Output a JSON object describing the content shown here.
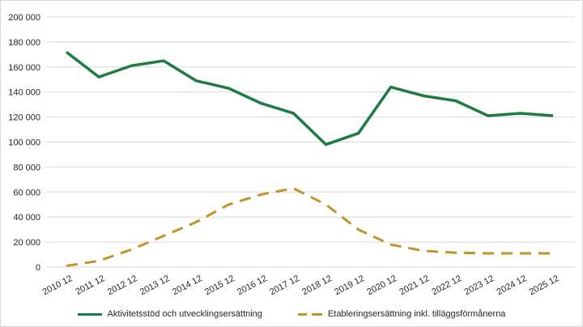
{
  "chart_data": {
    "type": "line",
    "categories": [
      "2010 12",
      "2011 12",
      "2012 12",
      "2013 12",
      "2014 12",
      "2015 12",
      "2016 12",
      "2017 12",
      "2018 12",
      "2019 12",
      "2020 12",
      "2021 12",
      "2022 12",
      "2023 12",
      "2024 12",
      "2025 12"
    ],
    "series": [
      {
        "name": "Aktivitetsstöd och utvecklingsersättning",
        "style": "solid",
        "color": "#1e7b43",
        "values": [
          172000,
          152000,
          161000,
          165000,
          149000,
          143000,
          131000,
          123000,
          98000,
          107000,
          144000,
          137000,
          133000,
          121000,
          123000,
          121000
        ]
      },
      {
        "name": "Etableringsersättning inkl. tilläggsförmånerna",
        "style": "dashed",
        "color": "#c2922b",
        "values": [
          1000,
          5000,
          14000,
          25000,
          36000,
          50000,
          58000,
          63000,
          50000,
          30000,
          18000,
          13000,
          11500,
          11000,
          11000,
          11000
        ]
      }
    ],
    "title": "",
    "xlabel": "",
    "ylabel": "",
    "ylim": [
      0,
      200000
    ],
    "ytick_step": 20000,
    "ytick_labels": [
      "0",
      "20 000",
      "40 000",
      "60 000",
      "80 000",
      "100 000",
      "120 000",
      "140 000",
      "160 000",
      "180 000",
      "200 000"
    ],
    "grid": true,
    "gridline_color": "#d9d9d9",
    "axis_label_color": "#262626",
    "legend_position": "bottom"
  }
}
